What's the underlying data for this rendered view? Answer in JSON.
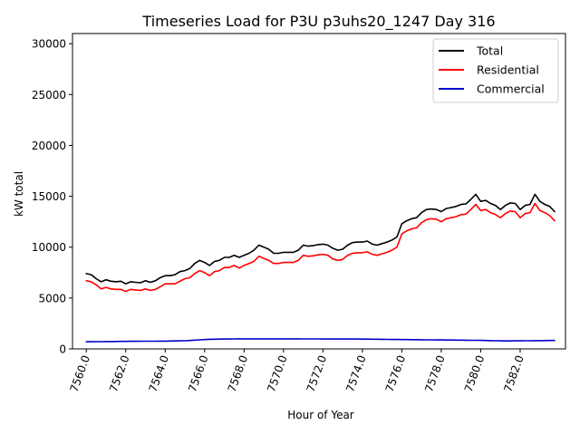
{
  "chart_data": {
    "type": "line",
    "title": "Timeseries Load for P3U p3uhs20_1247  Day 316",
    "xlabel": "Hour of Year",
    "ylabel": "kW total",
    "xlim": [
      7559.3,
      7584.3
    ],
    "ylim": [
      0,
      31000
    ],
    "x_ticks": [
      7560,
      7562,
      7564,
      7566,
      7568,
      7570,
      7572,
      7574,
      7576,
      7578,
      7580,
      7582
    ],
    "x_tick_labels": [
      "7560.0",
      "7562.0",
      "7564.0",
      "7566.0",
      "7568.0",
      "7570.0",
      "7572.0",
      "7574.0",
      "7576.0",
      "7578.0",
      "7580.0",
      "7582.0"
    ],
    "y_ticks": [
      0,
      5000,
      10000,
      15000,
      20000,
      25000,
      30000
    ],
    "y_tick_labels": [
      "0",
      "5000",
      "10000",
      "15000",
      "20000",
      "25000",
      "30000"
    ],
    "grid": false,
    "legend_position": "top-right",
    "x": [
      7560.0,
      7560.25,
      7560.5,
      7560.75,
      7561.0,
      7561.25,
      7561.5,
      7561.75,
      7562.0,
      7562.25,
      7562.5,
      7562.75,
      7563.0,
      7563.25,
      7563.5,
      7563.75,
      7564.0,
      7564.25,
      7564.5,
      7564.75,
      7565.0,
      7565.25,
      7565.5,
      7565.75,
      7566.0,
      7566.25,
      7566.5,
      7566.75,
      7567.0,
      7567.25,
      7567.5,
      7567.75,
      7568.0,
      7568.25,
      7568.5,
      7568.75,
      7569.0,
      7569.25,
      7569.5,
      7569.75,
      7570.0,
      7570.25,
      7570.5,
      7570.75,
      7571.0,
      7571.25,
      7571.5,
      7571.75,
      7572.0,
      7572.25,
      7572.5,
      7572.75,
      7573.0,
      7573.25,
      7573.5,
      7573.75,
      7574.0,
      7574.25,
      7574.5,
      7574.75,
      7575.0,
      7575.25,
      7575.5,
      7575.75,
      7576.0,
      7576.25,
      7576.5,
      7576.75,
      7577.0,
      7577.25,
      7577.5,
      7577.75,
      7578.0,
      7578.25,
      7578.5,
      7578.75,
      7579.0,
      7579.25,
      7579.5,
      7579.75,
      7580.0,
      7580.25,
      7580.5,
      7580.75,
      7581.0,
      7581.25,
      7581.5,
      7581.75,
      7582.0,
      7582.25,
      7582.5,
      7582.75,
      7583.0,
      7583.25,
      7583.5,
      7583.75
    ],
    "series": [
      {
        "name": "Total",
        "color": "#000000",
        "values": [
          7400,
          7300,
          6900,
          6600,
          6800,
          6650,
          6600,
          6650,
          6400,
          6600,
          6550,
          6500,
          6700,
          6550,
          6700,
          7000,
          7200,
          7200,
          7300,
          7600,
          7700,
          7900,
          8400,
          8700,
          8500,
          8200,
          8600,
          8700,
          9000,
          9000,
          9200,
          9000,
          9200,
          9400,
          9700,
          10200,
          10000,
          9800,
          9400,
          9400,
          9500,
          9500,
          9500,
          9700,
          10200,
          10100,
          10150,
          10250,
          10300,
          10200,
          9900,
          9700,
          9800,
          10200,
          10450,
          10500,
          10500,
          10600,
          10300,
          10200,
          10350,
          10500,
          10700,
          11000,
          12300,
          12600,
          12800,
          12900,
          13400,
          13700,
          13750,
          13700,
          13500,
          13800,
          13900,
          14000,
          14200,
          14250,
          14700,
          15200,
          14500,
          14600,
          14300,
          14100,
          13700,
          14100,
          14350,
          14300,
          13700,
          14100,
          14200,
          15200,
          14500,
          14200,
          14000,
          13500
        ]
      },
      {
        "name": "Residential",
        "color": "#ff0000",
        "values": [
          6700,
          6600,
          6300,
          5900,
          6050,
          5900,
          5850,
          5850,
          5650,
          5850,
          5800,
          5750,
          5900,
          5750,
          5850,
          6100,
          6400,
          6400,
          6400,
          6650,
          6900,
          7000,
          7400,
          7700,
          7500,
          7200,
          7600,
          7700,
          8000,
          8000,
          8200,
          7950,
          8200,
          8400,
          8600,
          9100,
          8900,
          8700,
          8400,
          8400,
          8500,
          8500,
          8500,
          8700,
          9200,
          9100,
          9150,
          9250,
          9300,
          9200,
          8850,
          8700,
          8800,
          9200,
          9400,
          9450,
          9450,
          9550,
          9300,
          9200,
          9350,
          9500,
          9700,
          10000,
          11300,
          11600,
          11800,
          11900,
          12400,
          12700,
          12800,
          12750,
          12500,
          12800,
          12900,
          13000,
          13200,
          13250,
          13700,
          14200,
          13600,
          13700,
          13400,
          13200,
          12900,
          13300,
          13550,
          13500,
          12900,
          13300,
          13400,
          14300,
          13600,
          13400,
          13100,
          12600
        ]
      },
      {
        "name": "Commercial",
        "color": "#0000cc",
        "values": [
          700,
          705,
          710,
          715,
          720,
          725,
          730,
          735,
          740,
          745,
          750,
          755,
          760,
          760,
          760,
          765,
          770,
          775,
          780,
          790,
          800,
          830,
          860,
          890,
          920,
          940,
          955,
          965,
          970,
          975,
          980,
          985,
          985,
          985,
          985,
          985,
          985,
          985,
          985,
          985,
          985,
          985,
          985,
          985,
          980,
          980,
          980,
          980,
          975,
          975,
          975,
          975,
          970,
          970,
          970,
          970,
          965,
          960,
          955,
          950,
          940,
          935,
          930,
          925,
          920,
          915,
          910,
          905,
          900,
          895,
          890,
          885,
          880,
          875,
          870,
          865,
          860,
          855,
          850,
          845,
          840,
          830,
          815,
          800,
          790,
          785,
          785,
          790,
          795,
          800,
          805,
          810,
          815,
          820,
          825,
          830
        ]
      }
    ]
  }
}
